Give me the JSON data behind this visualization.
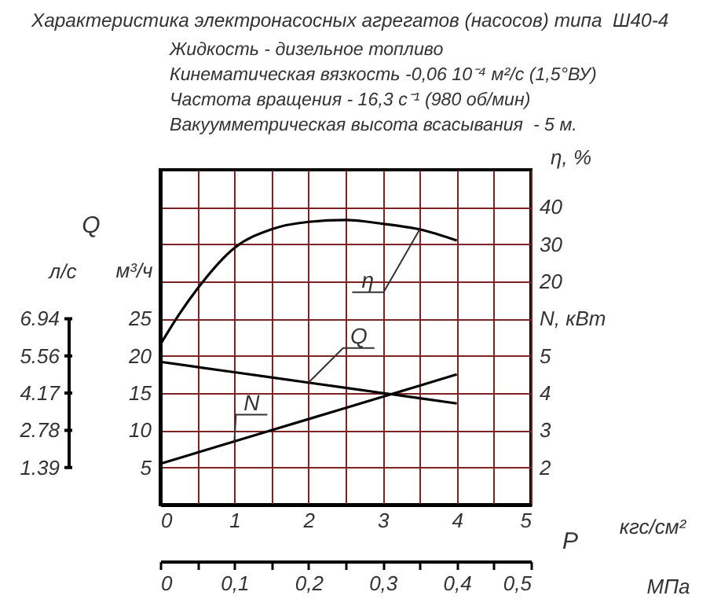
{
  "chart_data": {
    "type": "line",
    "title": "Характеристика электронасосных агрегатов (насосов) типа  Ш40-4",
    "subtitle": "Жидкость - дизельное топливо\nКинематическая вязкость -0,06 10⁻⁴ м²/с (1,5°ВУ)\nЧастота вращения - 16,3 с⁻¹ (980 об/мин)\nВакуумметрическая высота всасывания  - 5 м.",
    "xlabel": "кгс/см²",
    "x2label": "МПа",
    "ylabel": "м³/ч",
    "y2label": "N, кВт",
    "y3label": "η, %",
    "annotations": [
      "Q",
      "P",
      "л/с",
      "6.94",
      "5.56",
      "4.17",
      "2.78",
      "1.39"
    ],
    "x": [
      0,
      1,
      2,
      3,
      4
    ],
    "series": [
      {
        "name": "Q",
        "color": "#000000",
        "values": [
          19.2,
          17.8,
          16.4,
          15.0,
          13.6
        ]
      },
      {
        "name": "N",
        "color": "#000000",
        "axis": "y2",
        "values": [
          2.1,
          2.7,
          3.3,
          3.9,
          4.5
        ]
      },
      {
        "name": "η",
        "color": "#000000",
        "axis": "y3",
        "x": [
          0,
          0.25,
          0.5,
          1,
          1.5,
          2,
          2.5,
          3,
          3.5,
          4
        ],
        "values": [
          3,
          11,
          18,
          29,
          34,
          36,
          36.5,
          35.5,
          34,
          31
        ]
      }
    ],
    "xlim": [
      0,
      5
    ],
    "xticks": [
      0,
      {
        "value": 0.5,
        "label": null
      },
      1,
      {
        "value": 1.5,
        "label": null
      },
      2,
      {
        "value": 2.5,
        "label": null
      },
      3,
      {
        "value": 3.5,
        "label": null
      },
      4,
      {
        "value": 4.5,
        "label": null
      },
      5
    ],
    "x2lim": [
      0,
      0.5
    ],
    "x2ticks": [
      0,
      {
        "value": 0.05,
        "label": null
      },
      {
        "value": 0.1,
        "label": "0,1"
      },
      {
        "value": 0.15,
        "label": null
      },
      {
        "value": 0.2,
        "label": "0,2"
      },
      {
        "value": 0.25,
        "label": null
      },
      {
        "value": 0.3,
        "label": "0,3"
      },
      {
        "value": 0.35,
        "label": null
      },
      {
        "value": 0.4,
        "label": "0,4"
      },
      {
        "value": 0.45,
        "label": null
      },
      {
        "value": 0.5,
        "label": "0,5"
      }
    ],
    "ylim": [
      0,
      45
    ],
    "yticks": [
      5,
      10,
      15,
      20,
      25,
      {
        "value": 30,
        "label": null
      },
      {
        "value": 35,
        "label": null
      },
      {
        "value": 40,
        "label": null
      }
    ],
    "y2lim": [
      1,
      10
    ],
    "y2ticks": [
      2,
      3,
      4,
      5
    ],
    "y3lim": [
      -40,
      50
    ],
    "y3ticks": [
      20,
      30,
      40
    ],
    "grid": true
  }
}
